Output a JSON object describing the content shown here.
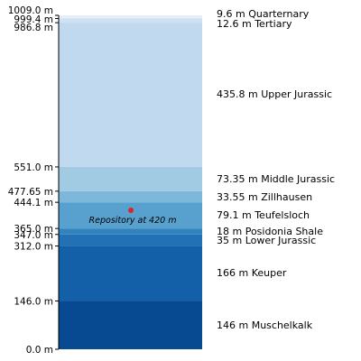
{
  "chart_data": {
    "type": "stacked-column",
    "y_unit": "m",
    "ylim": [
      0,
      1009.0
    ],
    "y_ticks": [
      {
        "value": 0.0,
        "label": "0.0 m"
      },
      {
        "value": 146.0,
        "label": "146.0 m"
      },
      {
        "value": 312.0,
        "label": "312.0 m"
      },
      {
        "value": 347.0,
        "label": "347.0 m"
      },
      {
        "value": 365.0,
        "label": "365.0 m"
      },
      {
        "value": 444.1,
        "label": "444.1 m"
      },
      {
        "value": 477.65,
        "label": "477.65 m"
      },
      {
        "value": 551.0,
        "label": "551.0 m"
      },
      {
        "value": 986.8,
        "label": "986.8 m"
      },
      {
        "value": 999.4,
        "label": "999.4 m"
      },
      {
        "value": 1009.0,
        "label": "1009.0 m"
      }
    ],
    "layers": [
      {
        "name": "Muschelkalk",
        "bottom": 0.0,
        "thickness": 146,
        "label": "146 m Muschelkalk",
        "color": "#084a91"
      },
      {
        "name": "Keuper",
        "bottom": 146.0,
        "thickness": 166,
        "label": "166 m Keuper",
        "color": "#1460a8"
      },
      {
        "name": "Lower Jurassic",
        "bottom": 312.0,
        "thickness": 35,
        "label": "35 m Lower Jurassic",
        "color": "#2271b5"
      },
      {
        "name": "Posidonia Shale",
        "bottom": 347.0,
        "thickness": 18,
        "label": "18 m Posidonia Shale",
        "color": "#3282be"
      },
      {
        "name": "Teufelsloch",
        "bottom": 365.0,
        "thickness": 79.1,
        "label": "79.1 m Teufelsloch",
        "color": "#58a1cf"
      },
      {
        "name": "Zillhausen",
        "bottom": 444.1,
        "thickness": 33.55,
        "label": "33.55 m Zillhausen",
        "color": "#7db8da"
      },
      {
        "name": "Middle Jurassic",
        "bottom": 477.65,
        "thickness": 73.35,
        "label": "73.35 m  Middle Jurassic",
        "color": "#a0cbe2"
      },
      {
        "name": "Upper Jurassic",
        "bottom": 551.0,
        "thickness": 435.8,
        "label": "435.8 m Upper Jurassic",
        "color": "#c1d9ee"
      },
      {
        "name": "Tertiary",
        "bottom": 986.8,
        "thickness": 12.6,
        "label": "12.6 m Tertiary",
        "color": "#d0e1f2"
      },
      {
        "name": "Quarterny",
        "bottom": 999.4,
        "thickness": 9.6,
        "label": "9.6 m Quarternary",
        "color": "#e3eef8"
      }
    ],
    "repository": {
      "depth": 420,
      "label": "Repository at 420 m",
      "color": "#d62728"
    }
  }
}
